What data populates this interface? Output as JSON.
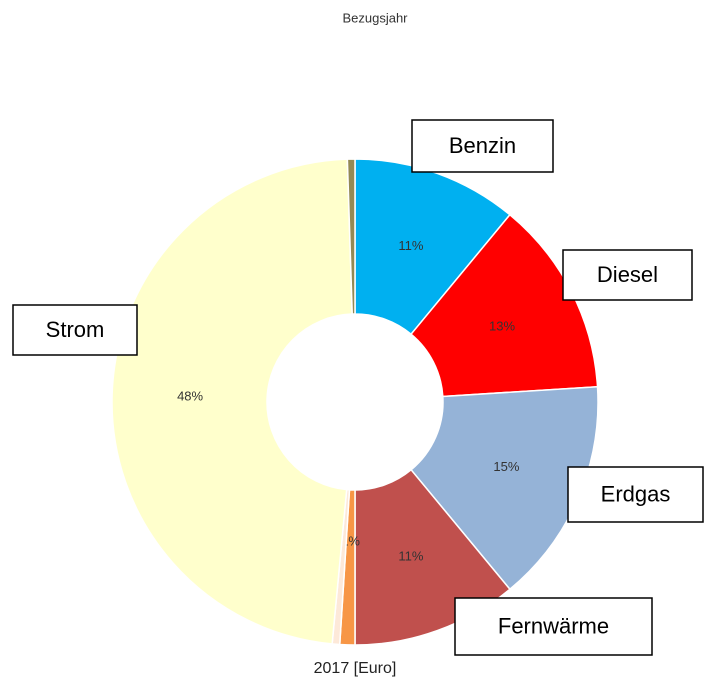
{
  "chart_data": {
    "type": "donut",
    "title": "Bezugsjahr",
    "x_label": "2017 [Euro]",
    "categories": [
      "Benzin",
      "Diesel",
      "Erdgas",
      "Fernwärme",
      null,
      null,
      "Strom",
      null
    ],
    "values": [
      11,
      13,
      15,
      11,
      1,
      0.5,
      48,
      0.5
    ],
    "value_labels": [
      "11%",
      "13%",
      "15%",
      "11%",
      "1%",
      null,
      "48%",
      null
    ],
    "colors": [
      "#00b0f0",
      "#ff0000",
      "#95b3d7",
      "#c0504d",
      "#f79646",
      "#fde9d9",
      "#ffffcc",
      "#938953"
    ]
  }
}
